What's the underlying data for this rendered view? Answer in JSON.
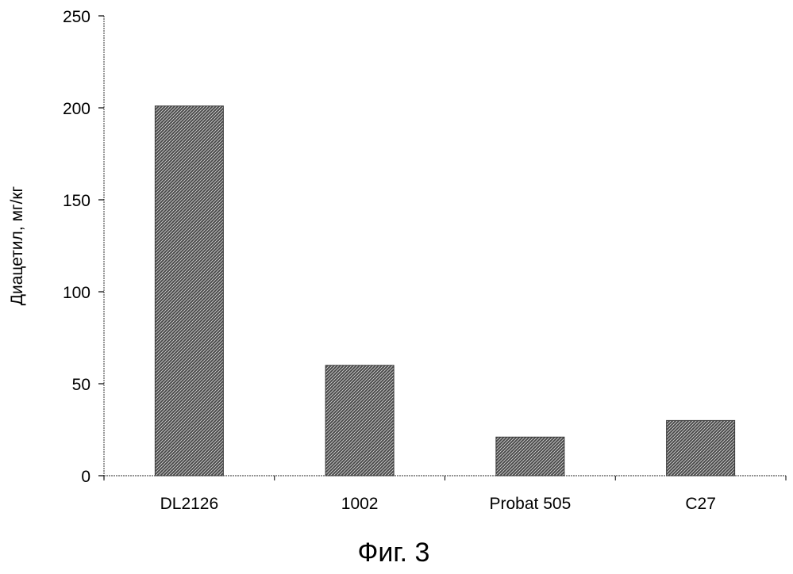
{
  "chart_data": {
    "type": "bar",
    "title": "",
    "xlabel": "",
    "ylabel": "Диацетил, мг/кг",
    "categories": [
      "DL2126",
      "1002",
      "Probat 505",
      "C27"
    ],
    "values": [
      201,
      60,
      21,
      30
    ],
    "ylim": [
      0,
      250
    ],
    "yticks": [
      0,
      50,
      100,
      150,
      200,
      250
    ],
    "grid": false,
    "legend": "none",
    "bar_fill": "crosshatch dark gray"
  },
  "figure_caption": "Фиг. 3"
}
